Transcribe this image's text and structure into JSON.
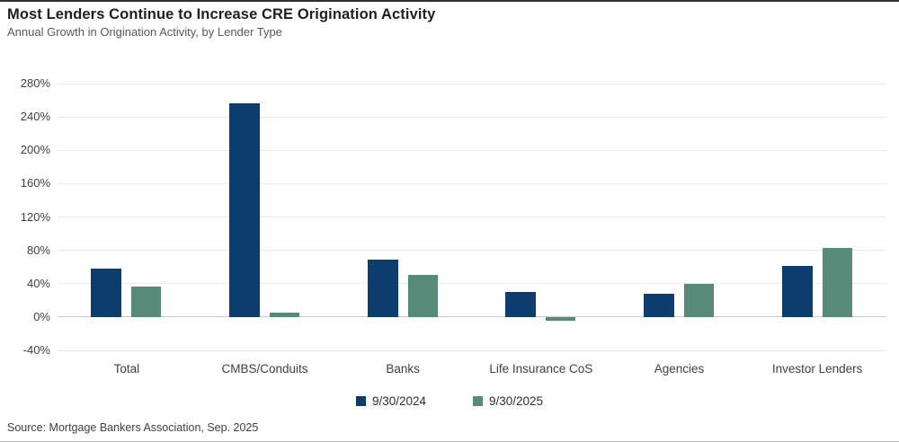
{
  "header": {
    "title": "Most Lenders Continue to Increase CRE Origination Activity",
    "subtitle": "Annual Growth in Origination Activity, by Lender Type"
  },
  "footer": {
    "source": "Source: Mortgage Bankers Association, Sep. 2025"
  },
  "colors": {
    "series1": "#0d3d6e",
    "series2": "#578a78",
    "gridline": "#eaeaea",
    "baseline": "#c9c9c9"
  },
  "chart_data": {
    "type": "bar",
    "title": "Most Lenders Continue to Increase CRE Origination Activity",
    "subtitle": "Annual Growth in Origination Activity, by Lender Type",
    "categories": [
      "Total",
      "CMBS/Conduits",
      "Banks",
      "Life Insurance CoS",
      "Agencies",
      "Investor Lenders"
    ],
    "series": [
      {
        "name": "9/30/2024",
        "color": "#0d3d6e",
        "values": [
          58,
          256,
          69,
          30,
          28,
          61
        ]
      },
      {
        "name": "9/30/2025",
        "color": "#578a78",
        "values": [
          36,
          5,
          51,
          -4,
          40,
          83
        ]
      }
    ],
    "xlabel": "",
    "ylabel": "",
    "ytick_format": "percent",
    "ylim": [
      -40,
      280
    ],
    "ytick_step": 40,
    "grid": true,
    "legend_position": "bottom"
  }
}
